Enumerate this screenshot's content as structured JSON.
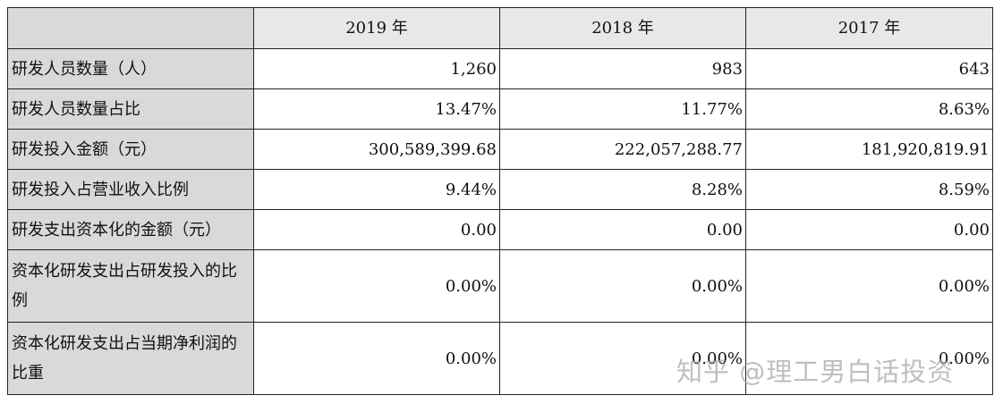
{
  "table": {
    "header": {
      "corner": "",
      "years": [
        "2019 年",
        "2018 年",
        "2017 年"
      ]
    },
    "rows": [
      {
        "label": "研发人员数量（人）",
        "values": [
          "1,260",
          "983",
          "643"
        ]
      },
      {
        "label": "研发人员数量占比",
        "values": [
          "13.47%",
          "11.77%",
          "8.63%"
        ]
      },
      {
        "label": "研发投入金额（元）",
        "values": [
          "300,589,399.68",
          "222,057,288.77",
          "181,920,819.91"
        ]
      },
      {
        "label": "研发投入占营业收入比例",
        "values": [
          "9.44%",
          "8.28%",
          "8.59%"
        ]
      },
      {
        "label": "研发支出资本化的金额（元）",
        "values": [
          "0.00",
          "0.00",
          "0.00"
        ]
      },
      {
        "label": "资本化研发支出占研发投入的比例",
        "values": [
          "0.00%",
          "0.00%",
          "0.00%"
        ]
      },
      {
        "label": "资本化研发支出占当期净利润的比重",
        "values": [
          "0.00%",
          "0.00%",
          "0.00%"
        ]
      }
    ]
  },
  "watermark": {
    "text": "知乎 @理工男白话投资"
  },
  "colors": {
    "label_bg": "#d9d9d9",
    "header_bg": "#e8e8e8",
    "border": "#222222"
  }
}
